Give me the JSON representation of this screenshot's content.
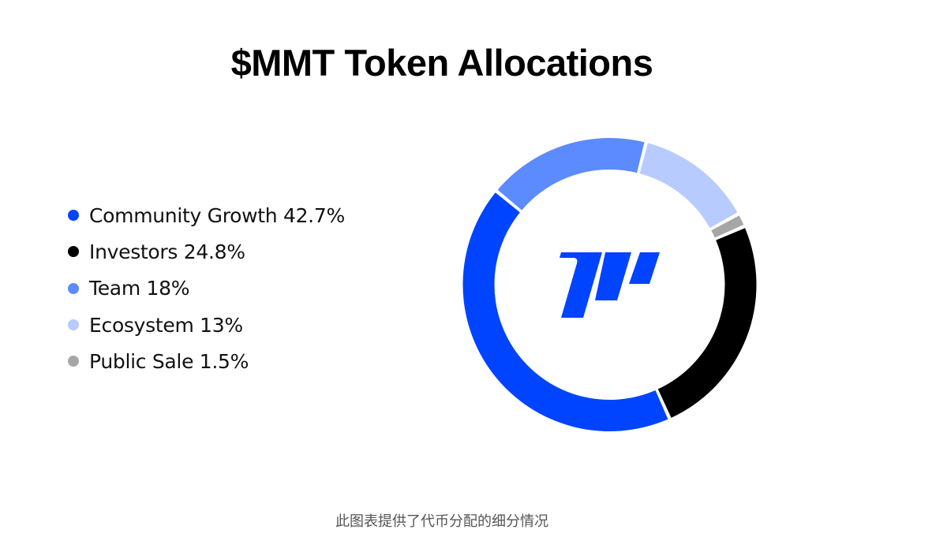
{
  "title": "$MMT Token Allocations",
  "caption": "此图表提供了代币分配的细分情况",
  "logo": {
    "icon": "mmt-logo-icon",
    "color": "#0044FF"
  },
  "legend": [
    {
      "label": "Community Growth 42.7%",
      "color": "#0044FF"
    },
    {
      "label": "Investors 24.8%",
      "color": "#000000"
    },
    {
      "label": "Team 18%",
      "color": "#5C8AFF"
    },
    {
      "label": "Ecosystem 13%",
      "color": "#B8CBFF"
    },
    {
      "label": "Public Sale 1.5%",
      "color": "#A6A6A6"
    }
  ],
  "chart_data": {
    "type": "pie",
    "variant": "donut",
    "title": "$MMT Token Allocations",
    "categories": [
      "Community Growth",
      "Investors",
      "Team",
      "Ecosystem",
      "Public Sale"
    ],
    "values": [
      42.7,
      24.8,
      18,
      13,
      1.5
    ],
    "unit": "%",
    "colors": [
      "#0044FF",
      "#000000",
      "#5C8AFF",
      "#B8CBFF",
      "#A6A6A6"
    ],
    "clockwise_order_from_top": [
      "Ecosystem",
      "Public Sale",
      "Investors",
      "Community Growth",
      "Team"
    ],
    "legend_position": "left",
    "center_label": "MMT logo",
    "subtitle": "此图表提供了代币分配的细分情况"
  }
}
